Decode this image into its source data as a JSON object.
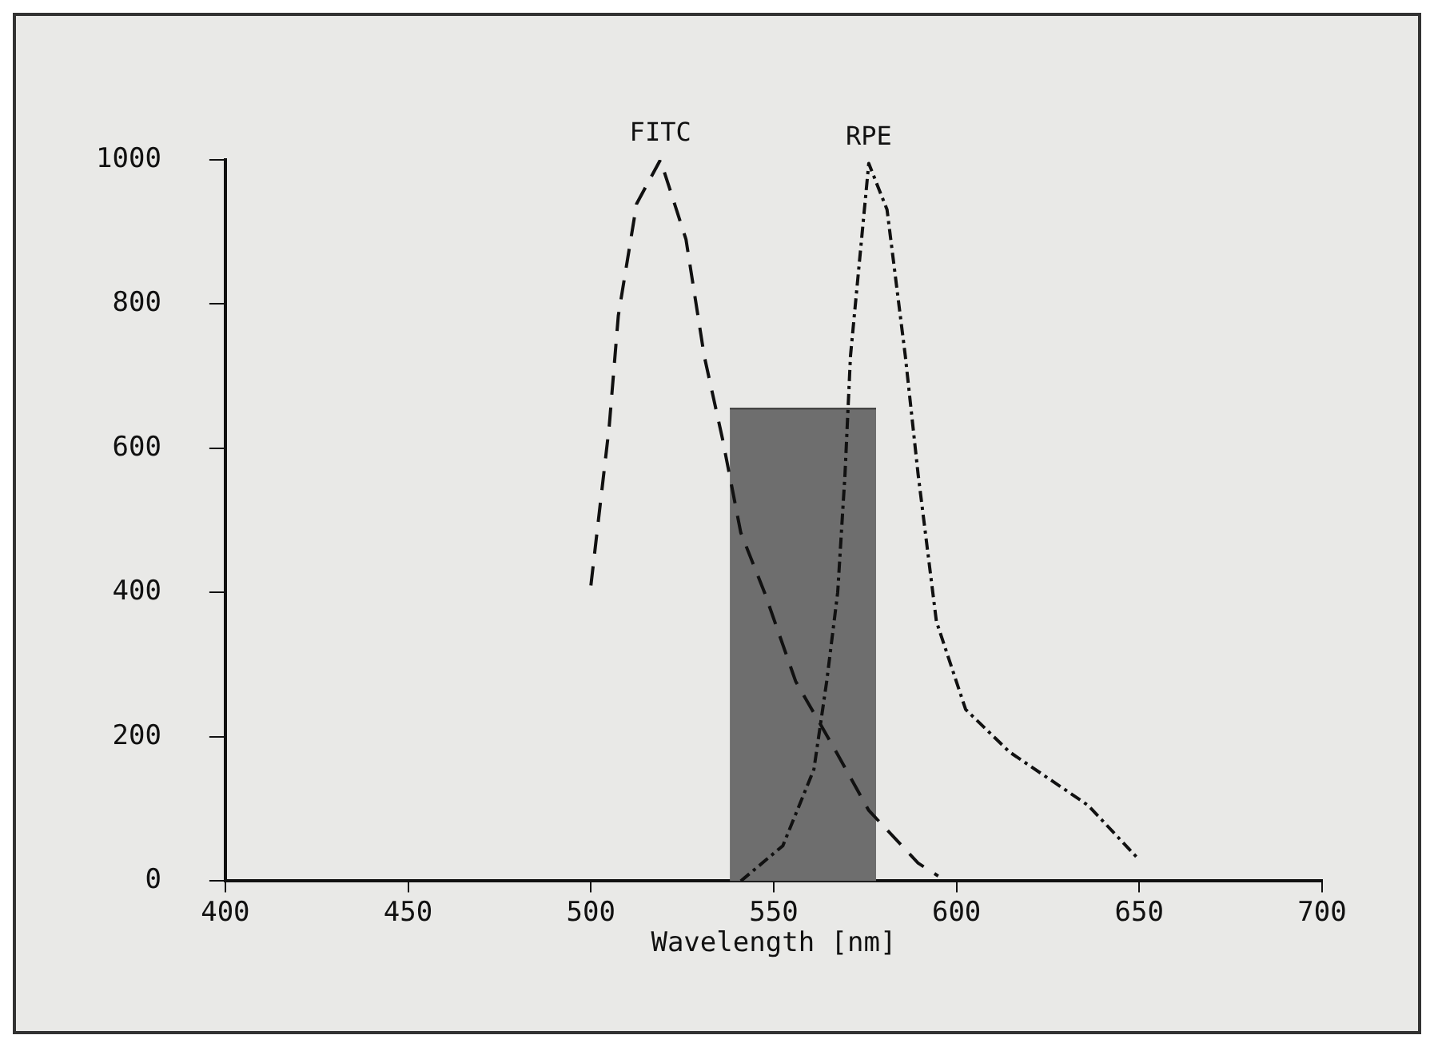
{
  "chart_data": {
    "type": "line",
    "xlabel": "Wavelength [nm]",
    "xlim": [
      400,
      700
    ],
    "xticks": [
      400,
      450,
      500,
      550,
      600,
      650,
      700
    ],
    "ylim": [
      0,
      1000
    ],
    "yticks": [
      0,
      200,
      400,
      600,
      800,
      1000
    ],
    "grid": false,
    "legend": false,
    "marker": "none",
    "series": [
      {
        "type": "area",
        "color": "#6e6e6e",
        "x": [
          538,
          578
        ],
        "values": [
          655,
          655
        ]
      },
      {
        "name": "FITC",
        "color": "#111111",
        "line_style": "dashed",
        "x": [
          500,
          505,
          507.5,
          512.5,
          519,
          526,
          531,
          536,
          541,
          547.5,
          556,
          566,
          576,
          589.5,
          595
        ],
        "values": [
          410,
          630,
          784,
          939,
          1000,
          890,
          728,
          613,
          483,
          400,
          277,
          189,
          98,
          25,
          7
        ]
      },
      {
        "name": "RPE",
        "color": "#111111",
        "line_style": "dotted",
        "x": [
          541,
          552.5,
          561,
          564.5,
          567.5,
          569.5,
          571,
          576,
          581,
          586,
          589.5,
          594.5,
          602.5,
          614.5,
          636,
          649.5
        ],
        "values": [
          0,
          49,
          155,
          277,
          400,
          564,
          728,
          995,
          931,
          728,
          564,
          360,
          238,
          179,
          105,
          32
        ]
      }
    ]
  }
}
